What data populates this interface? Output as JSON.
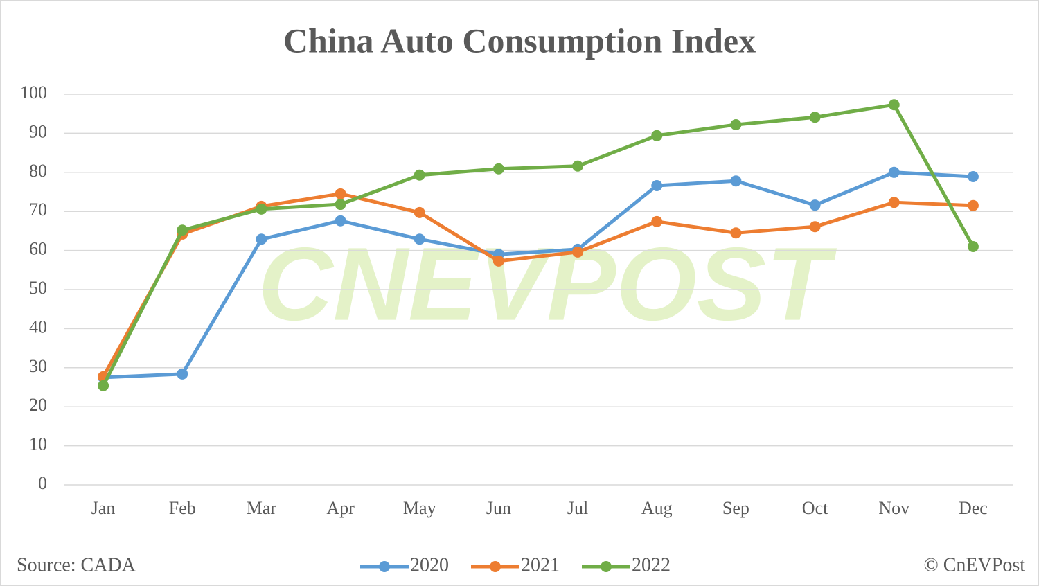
{
  "chart_data": {
    "type": "line",
    "title": "China Auto Consumption Index",
    "categories": [
      "Jan",
      "Feb",
      "Mar",
      "Apr",
      "May",
      "Jun",
      "Jul",
      "Aug",
      "Sep",
      "Oct",
      "Nov",
      "Dec"
    ],
    "series": [
      {
        "name": "2020",
        "color": "#5b9bd5",
        "values": [
          27.5,
          28.4,
          62.9,
          67.6,
          62.9,
          59.0,
          60.3,
          76.6,
          77.8,
          71.6,
          80.0,
          78.9
        ]
      },
      {
        "name": "2021",
        "color": "#ed7d31",
        "values": [
          27.7,
          64.2,
          71.3,
          74.5,
          69.7,
          57.3,
          59.6,
          67.4,
          64.5,
          66.1,
          72.3,
          71.5
        ]
      },
      {
        "name": "2022",
        "color": "#70ad47",
        "values": [
          25.4,
          65.2,
          70.6,
          71.8,
          79.3,
          80.9,
          81.6,
          89.4,
          92.2,
          94.1,
          97.3,
          61.0
        ]
      }
    ],
    "ylim": [
      0,
      100
    ],
    "yticks": [
      0,
      10,
      20,
      30,
      40,
      50,
      60,
      70,
      80,
      90,
      100
    ],
    "grid": true,
    "legend": "bottom",
    "source": "Source: CADA",
    "credit": "© CnEVPost",
    "watermark": "CNEVPOST"
  }
}
